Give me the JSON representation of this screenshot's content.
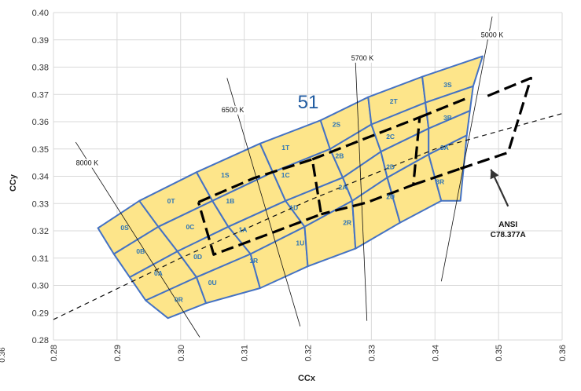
{
  "chart_data": {
    "type": "scatter",
    "xlabel": "CCx",
    "ylabel": "CCy",
    "xlim": [
      0.28,
      0.36
    ],
    "ylim": [
      0.28,
      0.4
    ],
    "x_ticks": [
      "0.28",
      "0.29",
      "0.30",
      "0.31",
      "0.32",
      "0.33",
      "0.34",
      "0.35",
      "0.36"
    ],
    "y_ticks": [
      "0.28",
      "0.29",
      "0.30",
      "0.31",
      "0.32",
      "0.33",
      "0.34",
      "0.35",
      "0.36",
      "0.37",
      "0.38",
      "0.39",
      "0.40"
    ],
    "grid": true,
    "page_number": "51",
    "left_edge_label": "0.36",
    "bin_grid": {
      "fill": "#fde58a",
      "stroke": "#4472c4",
      "rows": [
        [
          [
            0.287,
            0.321
          ],
          [
            0.2935,
            0.331
          ],
          [
            0.3025,
            0.3415
          ],
          [
            0.3125,
            0.352
          ],
          [
            0.322,
            0.3605
          ],
          [
            0.3295,
            0.369
          ],
          [
            0.338,
            0.3765
          ],
          [
            0.3475,
            0.384
          ]
        ],
        [
          [
            0.2895,
            0.3115
          ],
          [
            0.2965,
            0.3215
          ],
          [
            0.305,
            0.331
          ],
          [
            0.3145,
            0.3415
          ],
          [
            0.3235,
            0.35
          ],
          [
            0.33,
            0.359
          ],
          [
            0.3385,
            0.367
          ],
          [
            0.346,
            0.373
          ]
        ],
        [
          [
            0.292,
            0.303
          ],
          [
            0.2995,
            0.3125
          ],
          [
            0.3075,
            0.3215
          ],
          [
            0.3165,
            0.331
          ],
          [
            0.3255,
            0.3395
          ],
          [
            0.3315,
            0.349
          ],
          [
            0.339,
            0.3575
          ],
          [
            0.3455,
            0.364
          ]
        ],
        [
          [
            0.2945,
            0.2945
          ],
          [
            0.3025,
            0.303
          ],
          [
            0.311,
            0.3115
          ],
          [
            0.3195,
            0.3215
          ],
          [
            0.327,
            0.331
          ],
          [
            0.3325,
            0.3395
          ],
          [
            0.339,
            0.348
          ],
          [
            0.345,
            0.355
          ]
        ],
        [
          [
            0.298,
            0.288
          ],
          [
            0.304,
            0.2935
          ],
          [
            0.3125,
            0.299
          ],
          [
            0.32,
            0.307
          ],
          [
            0.3275,
            0.3135
          ],
          [
            0.3345,
            0.323
          ],
          [
            0.341,
            0.331
          ],
          [
            0.344,
            0.331
          ]
        ]
      ]
    },
    "bins": [
      {
        "label": "0S",
        "x": 0.2912,
        "y": 0.3212
      },
      {
        "label": "0T",
        "x": 0.2985,
        "y": 0.331
      },
      {
        "label": "1S",
        "x": 0.307,
        "y": 0.3405
      },
      {
        "label": "1T",
        "x": 0.3165,
        "y": 0.3505
      },
      {
        "label": "2S",
        "x": 0.3245,
        "y": 0.359
      },
      {
        "label": "2T",
        "x": 0.3335,
        "y": 0.3675
      },
      {
        "label": "3S",
        "x": 0.342,
        "y": 0.3735
      },
      {
        "label": "0B",
        "x": 0.2937,
        "y": 0.3125
      },
      {
        "label": "0C",
        "x": 0.3015,
        "y": 0.3215
      },
      {
        "label": "1B",
        "x": 0.3078,
        "y": 0.331
      },
      {
        "label": "1C",
        "x": 0.3165,
        "y": 0.3405
      },
      {
        "label": "2B",
        "x": 0.325,
        "y": 0.3475
      },
      {
        "label": "2C",
        "x": 0.333,
        "y": 0.3545
      },
      {
        "label": "3B",
        "x": 0.342,
        "y": 0.3615
      },
      {
        "label": "0A",
        "x": 0.2965,
        "y": 0.3045
      },
      {
        "label": "0D",
        "x": 0.3027,
        "y": 0.3105
      },
      {
        "label": "1A",
        "x": 0.3098,
        "y": 0.3205
      },
      {
        "label": "1D",
        "x": 0.3178,
        "y": 0.3285
      },
      {
        "label": "2A",
        "x": 0.3255,
        "y": 0.336
      },
      {
        "label": "2D",
        "x": 0.333,
        "y": 0.3435
      },
      {
        "label": "3A",
        "x": 0.3415,
        "y": 0.3505
      },
      {
        "label": "0R",
        "x": 0.2997,
        "y": 0.2948
      },
      {
        "label": "0U",
        "x": 0.305,
        "y": 0.301
      },
      {
        "label": "1R",
        "x": 0.3115,
        "y": 0.309
      },
      {
        "label": "1U",
        "x": 0.3188,
        "y": 0.3155
      },
      {
        "label": "2R",
        "x": 0.3262,
        "y": 0.323
      },
      {
        "label": "2U",
        "x": 0.333,
        "y": 0.3325
      },
      {
        "label": "3R",
        "x": 0.3408,
        "y": 0.338
      }
    ],
    "cct_lines": [
      {
        "label": "8000 K",
        "x1": 0.2835,
        "y1": 0.3525,
        "x2": 0.303,
        "y2": 0.281,
        "lx": 0.2853,
        "ly": 0.344
      },
      {
        "label": "6500 K",
        "x1": 0.3073,
        "y1": 0.376,
        "x2": 0.3188,
        "y2": 0.285,
        "lx": 0.3082,
        "ly": 0.3635
      },
      {
        "label": "5700 K",
        "x1": 0.3275,
        "y1": 0.382,
        "x2": 0.3293,
        "y2": 0.287,
        "lx": 0.3286,
        "ly": 0.3825
      },
      {
        "label": "5000 K",
        "x1": 0.349,
        "y1": 0.3985,
        "x2": 0.341,
        "y2": 0.3015,
        "lx": 0.349,
        "ly": 0.391
      }
    ],
    "planckian_locus": [
      [
        0.28,
        0.2875
      ],
      [
        0.3,
        0.31
      ],
      [
        0.32,
        0.331
      ],
      [
        0.34,
        0.35
      ],
      [
        0.36,
        0.363
      ]
    ],
    "ansi_quadrangles": [
      [
        [
          0.3028,
          0.3305
        ],
        [
          0.3115,
          0.3393
        ],
        [
          0.3207,
          0.3462
        ],
        [
          0.3221,
          0.3261
        ],
        [
          0.3136,
          0.3186
        ],
        [
          0.3052,
          0.3113
        ],
        [
          0.3028,
          0.3305
        ]
      ],
      [
        [
          0.3207,
          0.3462
        ],
        [
          0.329,
          0.3538
        ],
        [
          0.3376,
          0.3616
        ],
        [
          0.3366,
          0.3369
        ],
        [
          0.3293,
          0.3304
        ],
        [
          0.3221,
          0.3261
        ]
      ],
      [
        [
          0.3376,
          0.3616
        ],
        [
          0.3451,
          0.3687
        ]
      ],
      [
        [
          0.3366,
          0.3369
        ],
        [
          0.344,
          0.3428
        ]
      ],
      [
        [
          0.344,
          0.3428
        ],
        [
          0.3515,
          0.3487
        ],
        [
          0.3551,
          0.376
        ],
        [
          0.3475,
          0.3687
        ]
      ]
    ],
    "annotation": {
      "line1": "ANSI",
      "line2": "C78.377A",
      "arrow_from": [
        0.3515,
        0.329
      ],
      "arrow_to": [
        0.3488,
        0.3425
      ],
      "text_x": 0.3515,
      "text_y": 0.3215
    }
  }
}
